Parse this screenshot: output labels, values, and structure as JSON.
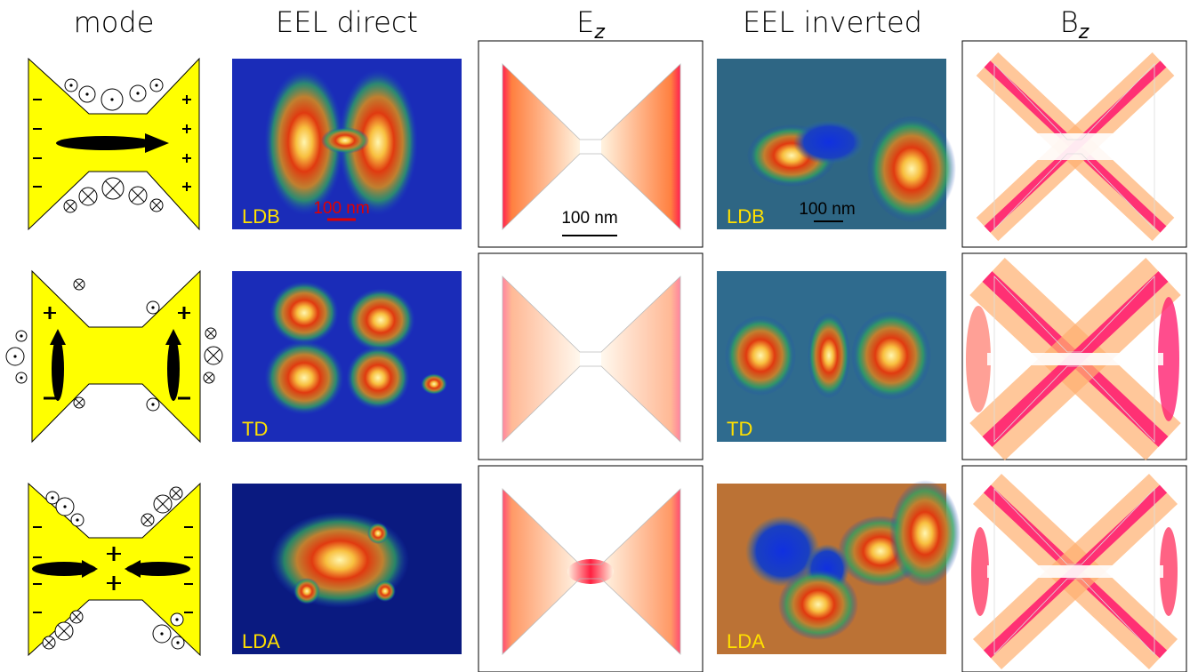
{
  "headers": [
    {
      "text": "mode"
    },
    {
      "text": "EEL direct"
    },
    {
      "text": "E",
      "sub": "z"
    },
    {
      "text": "EEL inverted"
    },
    {
      "text": "B",
      "sub": "z"
    }
  ],
  "eel_direct": {
    "labels": [
      "LDB",
      "TD",
      "LDA"
    ],
    "scale_bar": "100 nm"
  },
  "ez": {
    "scale_bar": "100 nm"
  },
  "eel_inverted": {
    "labels": [
      "LDB",
      "TD",
      "LDA"
    ],
    "scale_bar": "100 nm"
  }
}
